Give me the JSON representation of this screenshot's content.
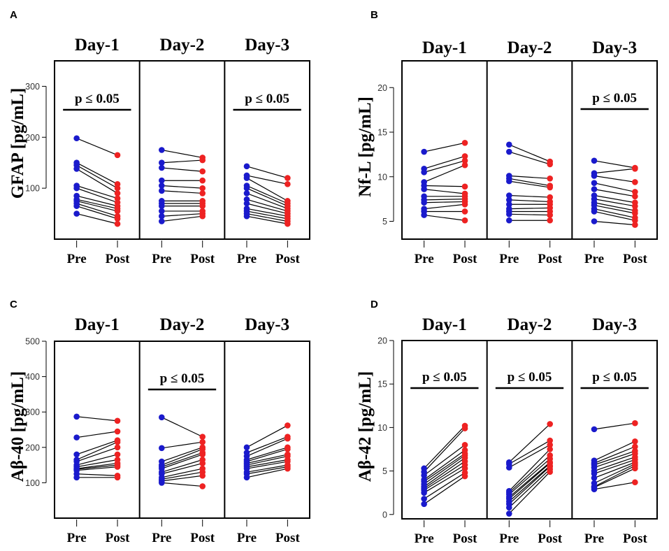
{
  "chart_data": [
    {
      "panel": "A",
      "type": "scatter",
      "subtype": "paired pre/post dot plot",
      "ylabel": "GFAP [pg/mL]",
      "ylim": [
        0,
        350
      ],
      "yticks": [
        100,
        200,
        300
      ],
      "colors": {
        "pre": "#1a1acc",
        "post": "#ee2222"
      },
      "groups": [
        {
          "title": "Day-1",
          "sig": "p ≤ 0.05",
          "labels": [
            "Pre",
            "Post"
          ],
          "pre": [
            198,
            150,
            145,
            138,
            105,
            100,
            85,
            78,
            75,
            70,
            65,
            50
          ],
          "post": [
            165,
            108,
            100,
            90,
            80,
            72,
            65,
            60,
            55,
            45,
            40,
            30
          ]
        },
        {
          "title": "Day-2",
          "sig": "",
          "labels": [
            "Pre",
            "Post"
          ],
          "pre": [
            175,
            150,
            140,
            115,
            105,
            95,
            75,
            70,
            65,
            55,
            45,
            35
          ],
          "post": [
            160,
            155,
            133,
            115,
            100,
            90,
            75,
            70,
            65,
            55,
            50,
            45
          ]
        },
        {
          "title": "Day-3",
          "sig": "p ≤ 0.05",
          "labels": [
            "Pre",
            "Post"
          ],
          "pre": [
            143,
            125,
            120,
            105,
            100,
            90,
            78,
            70,
            60,
            55,
            50,
            45
          ],
          "post": [
            120,
            108,
            75,
            70,
            65,
            60,
            55,
            50,
            45,
            40,
            35,
            30
          ]
        }
      ]
    },
    {
      "panel": "B",
      "type": "scatter",
      "subtype": "paired pre/post dot plot",
      "ylabel": "Nf-L [pg/mL]",
      "ylim": [
        3,
        23
      ],
      "yticks": [
        5,
        10,
        15,
        20
      ],
      "colors": {
        "pre": "#1a1acc",
        "post": "#ee2222"
      },
      "groups": [
        {
          "title": "Day-1",
          "sig": "",
          "labels": [
            "Pre",
            "Post"
          ],
          "pre": [
            12.8,
            10.9,
            10.5,
            9.4,
            9.0,
            8.6,
            7.8,
            7.4,
            7.1,
            6.4,
            6.1,
            5.7
          ],
          "post": [
            13.8,
            12.3,
            11.8,
            11.3,
            8.9,
            8.1,
            7.8,
            7.5,
            7.2,
            6.9,
            6.1,
            5.1
          ]
        },
        {
          "title": "Day-2",
          "sig": "",
          "labels": [
            "Pre",
            "Post"
          ],
          "pre": [
            13.6,
            12.8,
            10.1,
            9.8,
            9.5,
            7.9,
            7.4,
            6.9,
            6.4,
            6.1,
            5.8,
            5.1
          ],
          "post": [
            11.7,
            11.4,
            9.8,
            9.0,
            8.8,
            7.7,
            7.2,
            6.9,
            6.5,
            6.1,
            5.7,
            5.1
          ]
        },
        {
          "title": "Day-3",
          "sig": "p ≤ 0.05",
          "labels": [
            "Pre",
            "Post"
          ],
          "pre": [
            11.8,
            10.4,
            10.1,
            9.3,
            8.6,
            7.9,
            7.5,
            7.1,
            6.8,
            6.4,
            6.1,
            5.0
          ],
          "post": [
            11.0,
            10.9,
            9.4,
            8.3,
            7.8,
            7.1,
            6.7,
            6.2,
            5.9,
            5.4,
            5.1,
            4.6
          ]
        }
      ]
    },
    {
      "panel": "C",
      "type": "scatter",
      "subtype": "paired pre/post dot plot",
      "ylabel": "Aβ-40 [pg/mL]",
      "ylim": [
        0,
        500
      ],
      "yticks": [
        100,
        200,
        300,
        400,
        500
      ],
      "colors": {
        "pre": "#1a1acc",
        "post": "#ee2222"
      },
      "groups": [
        {
          "title": "Day-1",
          "sig": "",
          "labels": [
            "Pre",
            "Post"
          ],
          "pre": [
            287,
            228,
            180,
            165,
            160,
            150,
            145,
            140,
            138,
            135,
            125,
            115
          ],
          "post": [
            275,
            245,
            220,
            215,
            200,
            180,
            165,
            155,
            150,
            145,
            120,
            115
          ]
        },
        {
          "title": "Day-2",
          "sig": "p ≤ 0.05",
          "labels": [
            "Pre",
            "Post"
          ],
          "pre": [
            285,
            198,
            160,
            150,
            145,
            140,
            130,
            125,
            115,
            110,
            105,
            100
          ],
          "post": [
            230,
            215,
            200,
            195,
            185,
            180,
            165,
            155,
            140,
            130,
            120,
            90
          ]
        },
        {
          "title": "Day-3",
          "sig": "",
          "labels": [
            "Pre",
            "Post"
          ],
          "pre": [
            200,
            185,
            175,
            165,
            160,
            155,
            150,
            145,
            140,
            130,
            125,
            115
          ],
          "post": [
            262,
            230,
            225,
            200,
            195,
            180,
            175,
            165,
            160,
            150,
            145,
            140
          ]
        }
      ]
    },
    {
      "panel": "D",
      "type": "scatter",
      "subtype": "paired pre/post dot plot",
      "ylabel": "Aβ-42 [pg/mL]",
      "ylim": [
        -0.5,
        20
      ],
      "yticks": [
        0,
        5,
        10,
        15,
        20
      ],
      "colors": {
        "pre": "#1a1acc",
        "post": "#ee2222"
      },
      "groups": [
        {
          "title": "Day-1",
          "sig": "p ≤ 0.05",
          "labels": [
            "Pre",
            "Post"
          ],
          "pre": [
            5.3,
            4.9,
            4.5,
            4.0,
            3.8,
            3.5,
            3.2,
            3.0,
            2.8,
            2.5,
            1.8,
            1.2
          ],
          "post": [
            10.2,
            9.9,
            8.0,
            7.4,
            7.0,
            6.8,
            6.5,
            6.1,
            5.7,
            5.3,
            4.8,
            4.4
          ]
        },
        {
          "title": "Day-2",
          "sig": "p ≤ 0.05",
          "labels": [
            "Pre",
            "Post"
          ],
          "pre": [
            6.0,
            5.8,
            5.4,
            2.7,
            2.5,
            2.3,
            2.0,
            1.8,
            1.5,
            1.2,
            0.8,
            0.1
          ],
          "post": [
            10.4,
            8.5,
            8.0,
            7.5,
            6.8,
            6.4,
            6.0,
            5.9,
            5.6,
            5.5,
            5.2,
            4.9
          ]
        },
        {
          "title": "Day-3",
          "sig": "p ≤ 0.05",
          "labels": [
            "Pre",
            "Post"
          ],
          "pre": [
            9.8,
            6.2,
            5.9,
            5.7,
            5.4,
            5.0,
            4.7,
            4.2,
            3.6,
            3.2,
            3.1,
            2.9
          ],
          "post": [
            10.5,
            8.4,
            7.8,
            7.3,
            7.0,
            6.6,
            6.3,
            6.0,
            5.8,
            5.6,
            5.3,
            3.7
          ]
        }
      ]
    }
  ]
}
